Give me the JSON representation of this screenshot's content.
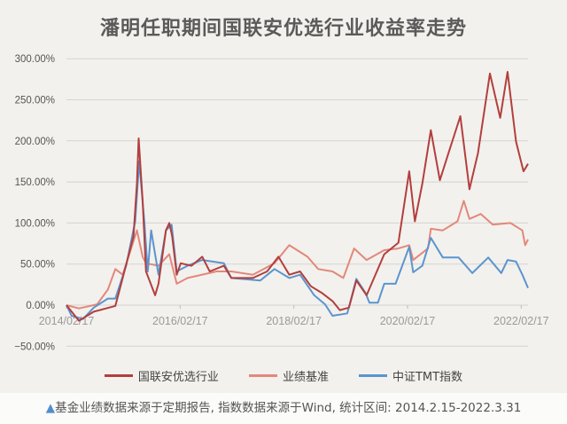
{
  "chart_data": {
    "type": "line",
    "title": "潘明任职期间国联安优选行业收益率走势",
    "xlabel": "",
    "ylabel": "",
    "x_unit": "decimal year",
    "xlim": [
      2014.13,
      2022.25
    ],
    "ylim": [
      -50,
      300
    ],
    "yticks": [
      300,
      250,
      200,
      150,
      100,
      50,
      0,
      -50
    ],
    "ytick_labels": [
      "300.00%",
      "250.00%",
      "200.00%",
      "150.00%",
      "100.00%",
      "50.00%",
      "0.00%",
      "−50.00%"
    ],
    "xticks": [
      2014.13,
      2016.13,
      2018.13,
      2020.13,
      2022.13
    ],
    "xtick_labels": [
      "2014/02/17",
      "2016/02/17",
      "2018/02/17",
      "2020/02/17",
      "2022/02/17"
    ],
    "grid": "horizontal",
    "legend_position": "bottom",
    "series": [
      {
        "name": "国联安优选行业",
        "color": "#b23f3e",
        "x": [
          2014.13,
          2014.35,
          2014.61,
          2014.99,
          2015.12,
          2015.31,
          2015.37,
          2015.4,
          2015.47,
          2015.53,
          2015.69,
          2015.75,
          2015.88,
          2015.94,
          2015.99,
          2016.07,
          2016.14,
          2016.33,
          2016.52,
          2016.65,
          2016.9,
          2017.03,
          2017.41,
          2017.66,
          2017.86,
          2018.05,
          2018.24,
          2018.43,
          2018.62,
          2018.81,
          2018.94,
          2019.1,
          2019.23,
          2019.41,
          2019.72,
          2019.97,
          2020.16,
          2020.26,
          2020.39,
          2020.54,
          2020.7,
          2020.85,
          2021.06,
          2021.22,
          2021.37,
          2021.58,
          2021.76,
          2021.89,
          2022.04,
          2022.17,
          2022.25
        ],
        "y": [
          0,
          -19,
          -8,
          -1,
          33,
          84,
          149,
          203,
          127,
          41,
          12,
          26,
          91,
          100,
          84,
          37,
          51,
          48,
          59,
          41,
          48,
          33,
          33,
          41,
          59,
          37,
          41,
          23,
          15,
          5,
          -6,
          -3,
          30,
          12,
          62,
          76,
          163,
          102,
          148,
          213,
          152,
          185,
          230,
          141,
          185,
          282,
          228,
          284,
          199,
          163,
          172
        ]
      },
      {
        "name": "业绩基准",
        "color": "#e2887b",
        "x": [
          2014.13,
          2014.35,
          2014.67,
          2014.86,
          2014.99,
          2015.12,
          2015.37,
          2015.47,
          2015.53,
          2015.75,
          2015.94,
          2016.07,
          2016.26,
          2016.77,
          2017.03,
          2017.41,
          2017.79,
          2018.05,
          2018.37,
          2018.56,
          2018.81,
          2019.0,
          2019.19,
          2019.41,
          2019.72,
          2019.97,
          2020.16,
          2020.23,
          2020.49,
          2020.54,
          2020.75,
          2021.01,
          2021.12,
          2021.22,
          2021.42,
          2021.63,
          2021.94,
          2022.15,
          2022.2,
          2022.25
        ],
        "y": [
          0,
          -4,
          1,
          19,
          44,
          37,
          91,
          59,
          51,
          48,
          62,
          26,
          33,
          41,
          41,
          37,
          51,
          73,
          59,
          44,
          41,
          33,
          69,
          55,
          67,
          69,
          73,
          55,
          69,
          93,
          91,
          102,
          127,
          105,
          111,
          98,
          100,
          91,
          73,
          80
        ]
      },
      {
        "name": "中证TMT指数",
        "color": "#5a95cf",
        "x": [
          2014.13,
          2014.22,
          2014.42,
          2014.61,
          2014.86,
          2014.99,
          2015.18,
          2015.34,
          2015.41,
          2015.5,
          2015.56,
          2015.62,
          2015.75,
          2015.88,
          2015.98,
          2016.07,
          2016.26,
          2016.52,
          2016.9,
          2017.03,
          2017.54,
          2017.79,
          2018.05,
          2018.24,
          2018.49,
          2018.68,
          2018.81,
          2019.07,
          2019.23,
          2019.39,
          2019.46,
          2019.61,
          2019.72,
          2019.92,
          2020.16,
          2020.23,
          2020.39,
          2020.54,
          2020.75,
          2021.03,
          2021.27,
          2021.55,
          2021.78,
          2021.89,
          2022.04,
          2022.15,
          2022.25
        ],
        "y": [
          0,
          -13,
          -17,
          -3,
          8,
          8,
          48,
          102,
          175,
          102,
          41,
          91,
          37,
          91,
          98,
          41,
          48,
          55,
          51,
          33,
          30,
          44,
          33,
          37,
          12,
          1,
          -13,
          -10,
          32,
          15,
          3,
          3,
          26,
          26,
          71,
          40,
          48,
          82,
          58,
          58,
          39,
          58,
          39,
          55,
          53,
          37,
          21
        ]
      }
    ]
  },
  "caption": {
    "marker": "▲",
    "text": "基金业绩数据来源于定期报告, 指数数据来源于Wind, 统计区间: 2014.2.15-2022.3.31"
  }
}
